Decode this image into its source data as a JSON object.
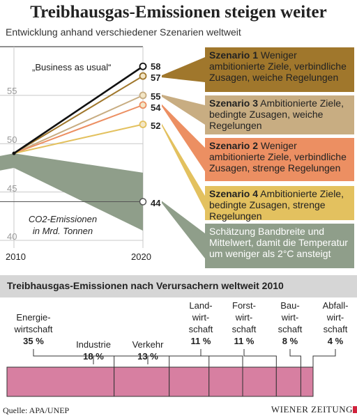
{
  "header": {
    "title": "Treibhausgas-Emissionen steigen weiter",
    "subtitle": "Entwicklung anhand verschiedener Szenarien weltweit"
  },
  "chart_data": [
    {
      "type": "line",
      "xlabel": "",
      "ylabel": "",
      "ylim": [
        40,
        60
      ],
      "x": [
        2010,
        2020
      ],
      "y_ticks": [
        "55",
        "50",
        "45",
        "40"
      ],
      "x_ticks": [
        "2010",
        "2020"
      ],
      "start_value": 49,
      "series": [
        {
          "name": "„Business as usual“",
          "values": [
            49,
            58
          ],
          "color": "#111111"
        },
        {
          "name": "Szenario 1",
          "values": [
            49,
            57
          ],
          "color": "#a0772c"
        },
        {
          "name": "Szenario 3",
          "values": [
            49,
            55
          ],
          "color": "#c8ad82"
        },
        {
          "name": "Szenario 2",
          "values": [
            49,
            54
          ],
          "color": "#ec8f62"
        },
        {
          "name": "Szenario 4",
          "values": [
            49,
            52
          ],
          "color": "#e3c15f"
        }
      ],
      "band": {
        "color": "#8f9e8a",
        "x": [
          2008,
          2010,
          2020
        ],
        "upper": [
          48.5,
          49,
          47
        ],
        "lower": [
          47,
          47.5,
          41
        ],
        "midpoint_2020": 44
      },
      "end_labels": [
        "58",
        "57",
        "55",
        "54",
        "52",
        "44"
      ],
      "business_as_usual_label": "„Business as usual“",
      "co2_label": [
        "CO2-Emissionen",
        "in Mrd. Tonnen"
      ],
      "scenario_boxes": [
        {
          "key": "s1",
          "name": "Szenario 1",
          "text": "Weniger ambitionierte Ziele, verbindliche Zusagen, weiche Regelungen",
          "color": "#a0772c"
        },
        {
          "key": "s3",
          "name": "Szenario 3",
          "text": "Ambitionierte Ziele, bedingte Zusagen, weiche Regelungen",
          "color": "#c8ad82"
        },
        {
          "key": "s2",
          "name": "Szenario 2",
          "text": "Weniger ambitionierte Ziele, verbindliche Zusagen, strenge Regelungen",
          "color": "#ec8f62"
        },
        {
          "key": "s4",
          "name": "Szenario 4",
          "text": "Ambitionierte Ziele, bedingte Zusagen, strenge Regelungen",
          "color": "#e3c15f"
        },
        {
          "key": "est",
          "name": "",
          "text": "Schätzung Bandbreite und Mittelwert, damit die Temperatur um weniger als 2°C ansteigt",
          "color": "#8f9e8a"
        }
      ]
    },
    {
      "type": "bar",
      "title": "Treibhausgas-Emissionen nach Verursachern weltweit 2010",
      "categories": [
        "Energie-wirtschaft",
        "Industrie",
        "Verkehr",
        "Land-wirt-schaft",
        "Forst-wirt-schaft",
        "Bau-wirt-schaft",
        "Abfall-wirt-schaft"
      ],
      "category_lines": [
        [
          "Energie-",
          "wirtschaft"
        ],
        [
          "Industrie"
        ],
        [
          "Verkehr"
        ],
        [
          "Land-",
          "wirt-",
          "schaft"
        ],
        [
          "Forst-",
          "wirt-",
          "schaft"
        ],
        [
          "Bau-",
          "wirt-",
          "schaft"
        ],
        [
          "Abfall-",
          "wirt-",
          "schaft"
        ]
      ],
      "values": [
        35,
        18,
        13,
        11,
        11,
        8,
        4
      ],
      "labels": [
        "35 %",
        "18 %",
        "13 %",
        "11 %",
        "11 %",
        "8 %",
        "4 %"
      ],
      "color": "#d77fa1"
    }
  ],
  "footer": {
    "source": "Quelle: APA/UNEP",
    "brand": "WIENER ZEITUNG"
  }
}
